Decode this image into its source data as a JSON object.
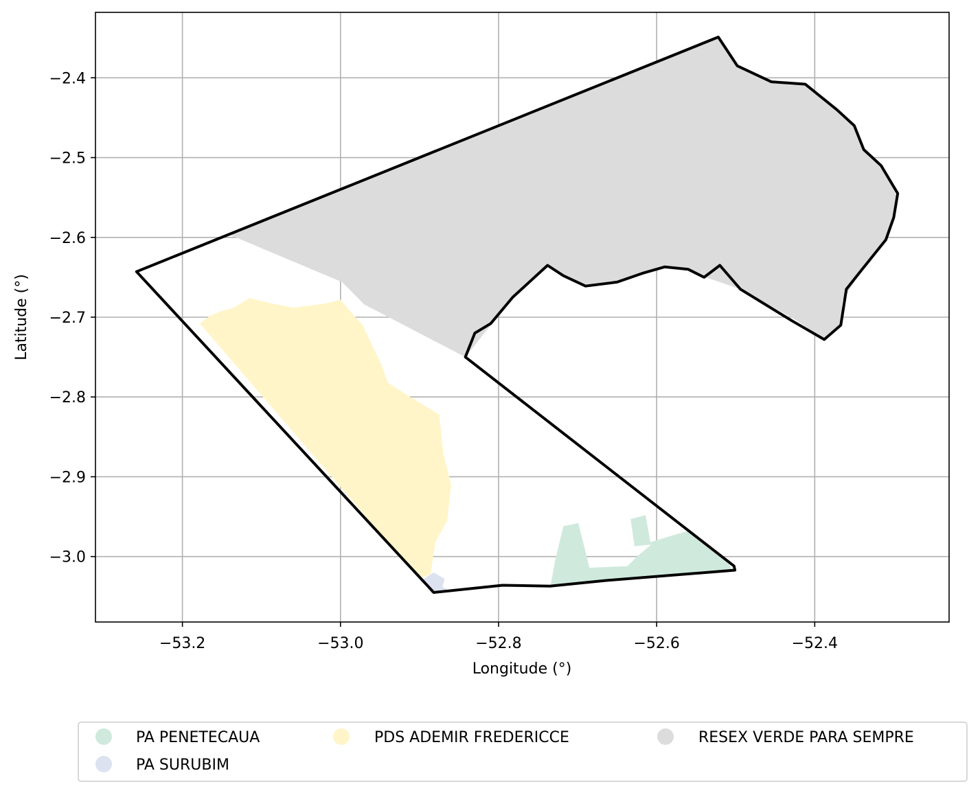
{
  "chart_data": {
    "type": "map",
    "xlabel": "Longitude (°)",
    "ylabel": "Latitude (°)",
    "xlim": [
      -53.31,
      -52.23
    ],
    "ylim": [
      -3.082,
      -2.318
    ],
    "x_ticks": [
      {
        "value": -53.2,
        "label": "−53.2"
      },
      {
        "value": -53.0,
        "label": "−53.0"
      },
      {
        "value": -52.8,
        "label": "−52.8"
      },
      {
        "value": -52.6,
        "label": "−52.6"
      },
      {
        "value": -52.4,
        "label": "−52.4"
      }
    ],
    "y_ticks": [
      {
        "value": -2.4,
        "label": "−2.4"
      },
      {
        "value": -2.5,
        "label": "−2.5"
      },
      {
        "value": -2.6,
        "label": "−2.6"
      },
      {
        "value": -2.7,
        "label": "−2.7"
      },
      {
        "value": -2.8,
        "label": "−2.8"
      },
      {
        "value": -2.9,
        "label": "−2.9"
      },
      {
        "value": -3.0,
        "label": "−3.0"
      }
    ],
    "grid": true,
    "legend_position": "bottom",
    "legend_columns": 3,
    "series": [
      {
        "name": "PA PENETECAUA",
        "color": "#cfeadd",
        "polygon": [
          [
            -52.734,
            -3.035
          ],
          [
            -52.728,
            -3.003
          ],
          [
            -52.718,
            -2.962
          ],
          [
            -52.699,
            -2.958
          ],
          [
            -52.685,
            -3.014
          ],
          [
            -52.637,
            -3.012
          ],
          [
            -52.625,
            -3.0
          ],
          [
            -52.607,
            -2.985
          ],
          [
            -52.628,
            -2.987
          ],
          [
            -52.633,
            -2.953
          ],
          [
            -52.614,
            -2.948
          ],
          [
            -52.608,
            -2.982
          ],
          [
            -52.578,
            -2.973
          ],
          [
            -52.561,
            -2.968
          ],
          [
            -52.545,
            -2.978
          ],
          [
            -52.511,
            -3.005
          ],
          [
            -52.505,
            -3.016
          ],
          [
            -52.58,
            -3.024
          ],
          [
            -52.66,
            -3.03
          ],
          [
            -52.734,
            -3.035
          ]
        ]
      },
      {
        "name": "PDS ADEMIR FREDERICCE",
        "color": "#fff5c9",
        "polygon": [
          [
            -53.178,
            -2.708
          ],
          [
            -53.165,
            -2.698
          ],
          [
            -53.15,
            -2.692
          ],
          [
            -53.135,
            -2.688
          ],
          [
            -53.115,
            -2.676
          ],
          [
            -53.09,
            -2.682
          ],
          [
            -53.06,
            -2.688
          ],
          [
            -53.02,
            -2.683
          ],
          [
            -53.0,
            -2.678
          ],
          [
            -52.99,
            -2.69
          ],
          [
            -52.972,
            -2.71
          ],
          [
            -52.96,
            -2.735
          ],
          [
            -52.948,
            -2.76
          ],
          [
            -52.94,
            -2.782
          ],
          [
            -52.92,
            -2.795
          ],
          [
            -52.895,
            -2.81
          ],
          [
            -52.875,
            -2.822
          ],
          [
            -52.87,
            -2.87
          ],
          [
            -52.86,
            -2.91
          ],
          [
            -52.865,
            -2.955
          ],
          [
            -52.88,
            -2.982
          ],
          [
            -52.886,
            -3.022
          ],
          [
            -52.9,
            -3.028
          ],
          [
            -53.178,
            -2.708
          ]
        ]
      },
      {
        "name": "PA SURUBIM",
        "color": "#dde2f0",
        "polygon": [
          [
            -52.885,
            -3.046
          ],
          [
            -52.895,
            -3.028
          ],
          [
            -52.882,
            -3.02
          ],
          [
            -52.868,
            -3.028
          ],
          [
            -52.871,
            -3.038
          ],
          [
            -52.862,
            -3.043
          ],
          [
            -52.885,
            -3.046
          ]
        ]
      },
      {
        "name": "RESEX VERDE PARA SEMPRE",
        "color": "#dcdcdc",
        "polygon": [
          [
            -53.142,
            -2.596
          ],
          [
            -52.524,
            -2.35
          ],
          [
            -52.515,
            -2.359
          ],
          [
            -52.5,
            -2.382
          ],
          [
            -52.478,
            -2.395
          ],
          [
            -52.452,
            -2.406
          ],
          [
            -52.413,
            -2.408
          ],
          [
            -52.37,
            -2.44
          ],
          [
            -52.35,
            -2.46
          ],
          [
            -52.338,
            -2.49
          ],
          [
            -52.316,
            -2.51
          ],
          [
            -52.295,
            -2.55
          ],
          [
            -52.31,
            -2.603
          ],
          [
            -52.34,
            -2.64
          ],
          [
            -52.365,
            -2.68
          ],
          [
            -52.367,
            -2.71
          ],
          [
            -52.388,
            -2.728
          ],
          [
            -52.425,
            -2.703
          ],
          [
            -52.494,
            -2.665
          ],
          [
            -52.538,
            -2.65
          ],
          [
            -52.56,
            -2.64
          ],
          [
            -52.59,
            -2.637
          ],
          [
            -52.62,
            -2.645
          ],
          [
            -52.65,
            -2.655
          ],
          [
            -52.69,
            -2.66
          ],
          [
            -52.725,
            -2.645
          ],
          [
            -52.738,
            -2.635
          ],
          [
            -52.76,
            -2.655
          ],
          [
            -52.782,
            -2.675
          ],
          [
            -52.81,
            -2.71
          ],
          [
            -52.842,
            -2.75
          ],
          [
            -52.97,
            -2.684
          ],
          [
            -52.998,
            -2.656
          ],
          [
            -53.142,
            -2.596
          ]
        ]
      }
    ],
    "boundary": [
      [
        -53.258,
        -2.643
      ],
      [
        -52.522,
        -2.349
      ],
      [
        -52.498,
        -2.385
      ],
      [
        -52.455,
        -2.405
      ],
      [
        -52.412,
        -2.408
      ],
      [
        -52.372,
        -2.44
      ],
      [
        -52.35,
        -2.46
      ],
      [
        -52.338,
        -2.49
      ],
      [
        -52.316,
        -2.51
      ],
      [
        -52.295,
        -2.545
      ],
      [
        -52.3,
        -2.575
      ],
      [
        -52.31,
        -2.603
      ],
      [
        -52.34,
        -2.64
      ],
      [
        -52.36,
        -2.665
      ],
      [
        -52.367,
        -2.71
      ],
      [
        -52.388,
        -2.728
      ],
      [
        -52.428,
        -2.705
      ],
      [
        -52.494,
        -2.665
      ],
      [
        -52.52,
        -2.635
      ],
      [
        -52.54,
        -2.65
      ],
      [
        -52.56,
        -2.64
      ],
      [
        -52.59,
        -2.637
      ],
      [
        -52.618,
        -2.645
      ],
      [
        -52.65,
        -2.656
      ],
      [
        -52.69,
        -2.661
      ],
      [
        -52.718,
        -2.648
      ],
      [
        -52.738,
        -2.635
      ],
      [
        -52.76,
        -2.655
      ],
      [
        -52.782,
        -2.675
      ],
      [
        -52.81,
        -2.708
      ],
      [
        -52.83,
        -2.72
      ],
      [
        -52.842,
        -2.75
      ],
      [
        -52.502,
        -3.012
      ],
      [
        -52.501,
        -3.017
      ],
      [
        -52.665,
        -3.03
      ],
      [
        -52.735,
        -3.037
      ],
      [
        -52.795,
        -3.036
      ],
      [
        -52.882,
        -3.045
      ],
      [
        -53.258,
        -2.643
      ]
    ]
  },
  "legend": {
    "items": [
      {
        "label": "PA PENETECAUA",
        "color": "#cfeadd"
      },
      {
        "label": "PA SURUBIM",
        "color": "#dde2f0"
      },
      {
        "label": "PDS ADEMIR FREDERICCE",
        "color": "#fff5c9"
      },
      {
        "label": "RESEX VERDE PARA SEMPRE",
        "color": "#dcdcdc"
      }
    ]
  }
}
